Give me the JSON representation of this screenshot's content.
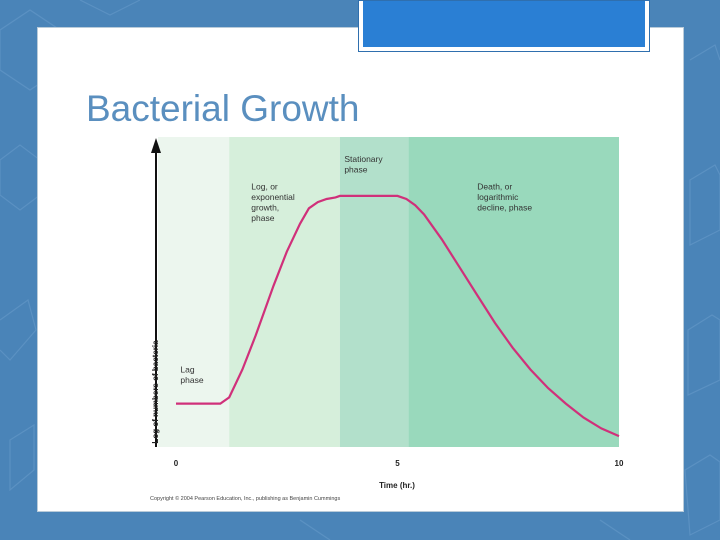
{
  "slide": {
    "title": "Bacterial Growth",
    "background_color": "#4a84b8",
    "accent_color": "#2a7fd4"
  },
  "chart_data": {
    "type": "line",
    "title": "",
    "xlabel": "Time (hr.)",
    "ylabel": "Log of numbers of bacteria",
    "xlim": [
      0,
      10
    ],
    "ylim": [
      0,
      10
    ],
    "x_ticks": [
      0,
      5,
      10
    ],
    "x_tick_labels": [
      "0",
      "5",
      "10"
    ],
    "y_ticks_shown": false,
    "grid": false,
    "series": [
      {
        "name": "",
        "color": "#d0307a",
        "x": [
          0,
          0.5,
          1.0,
          1.2,
          1.5,
          1.8,
          2.0,
          2.2,
          2.5,
          2.8,
          3.0,
          3.2,
          3.4,
          3.6,
          3.7,
          3.8,
          4.0,
          4.5,
          5.0,
          5.2,
          5.4,
          5.6,
          6.0,
          6.4,
          6.8,
          7.2,
          7.6,
          8.0,
          8.4,
          8.8,
          9.2,
          9.6,
          10.0
        ],
        "y": [
          1.4,
          1.4,
          1.4,
          1.6,
          2.5,
          3.6,
          4.4,
          5.2,
          6.3,
          7.2,
          7.7,
          7.9,
          8.0,
          8.05,
          8.1,
          8.1,
          8.1,
          8.1,
          8.1,
          8.0,
          7.8,
          7.5,
          6.7,
          5.8,
          4.9,
          4.0,
          3.2,
          2.5,
          1.9,
          1.4,
          0.95,
          0.6,
          0.35
        ]
      }
    ],
    "phases": [
      {
        "name": "lag",
        "label_lines": [
          "Lag",
          "phase"
        ],
        "x_start": 0,
        "x_end": 1.2,
        "color": "#ecf6ee"
      },
      {
        "name": "log",
        "label_lines": [
          "Log, or",
          "exponential",
          "growth,",
          "phase"
        ],
        "x_start": 1.2,
        "x_end": 3.7,
        "color": "#d6efdb"
      },
      {
        "name": "stationary",
        "label_lines": [
          "Stationary",
          "phase"
        ],
        "x_start": 3.7,
        "x_end": 5.25,
        "color": "#b2e0cb"
      },
      {
        "name": "death",
        "label_lines": [
          "Death, or",
          "logarithmic",
          "decline, phase"
        ],
        "x_start": 5.25,
        "x_end": 10,
        "color": "#99d9bc"
      }
    ],
    "annotations": [
      {
        "text_lines": [
          "Lag",
          "phase"
        ],
        "x": 0.1,
        "y": 2.4
      },
      {
        "text_lines": [
          "Log, or",
          "exponential",
          "growth,",
          "phase"
        ],
        "x": 1.7,
        "y": 8.3
      },
      {
        "text_lines": [
          "Stationary",
          "phase"
        ],
        "x": 3.8,
        "y": 9.2
      },
      {
        "text_lines": [
          "Death, or",
          "logarithmic",
          "decline, phase"
        ],
        "x": 6.8,
        "y": 8.3
      }
    ],
    "copyright": "Copyright © 2004 Pearson Education, Inc., publishing as Benjamin Cummings"
  }
}
